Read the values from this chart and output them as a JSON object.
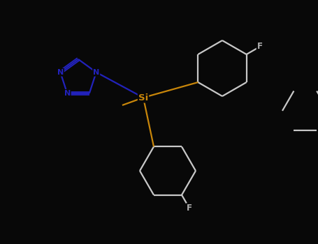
{
  "background_color": "#080808",
  "atom_colors": {
    "bond": "#c8c8c8",
    "N": "#2222bb",
    "Si": "#c8860a",
    "F": "#b0b0b0"
  },
  "figsize": [
    4.55,
    3.5
  ],
  "dpi": 100
}
